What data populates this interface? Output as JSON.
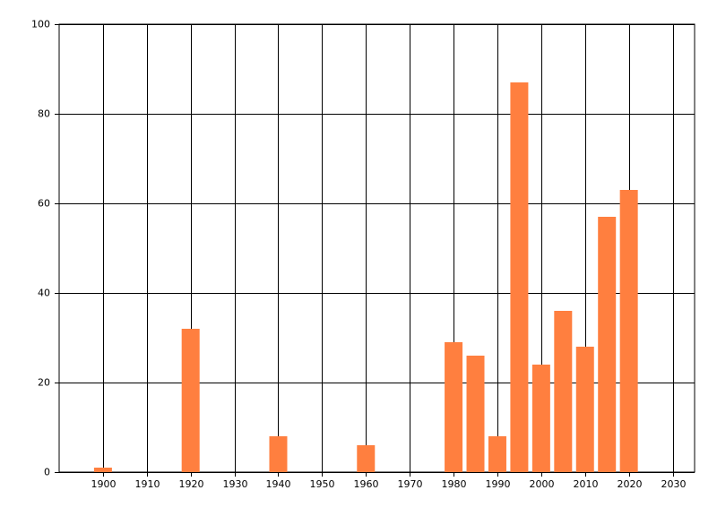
{
  "chart_data": {
    "type": "bar",
    "x": [
      1900,
      1920,
      1940,
      1960,
      1980,
      1985,
      1990,
      1995,
      2000,
      2005,
      2010,
      2015,
      2020
    ],
    "values": [
      1,
      32,
      8,
      6,
      29,
      26,
      8,
      87,
      24,
      36,
      28,
      57,
      63
    ],
    "color": "#ff7f3f",
    "xlim": [
      1890,
      2035
    ],
    "xticks": [
      1900,
      1910,
      1920,
      1930,
      1940,
      1950,
      1960,
      1970,
      1980,
      1990,
      2000,
      2010,
      2020,
      2030
    ],
    "ylim": [
      0,
      100
    ],
    "yticks": [
      0,
      20,
      40,
      60,
      80,
      100
    ],
    "grid": true
  }
}
